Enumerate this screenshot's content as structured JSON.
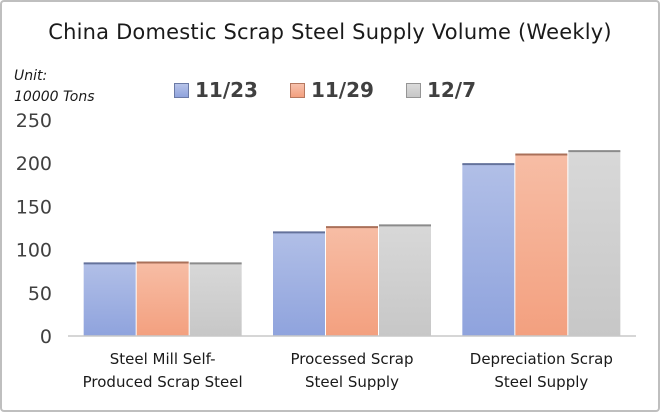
{
  "chart_data": {
    "type": "bar",
    "title": "China Domestic Scrap Steel Supply Volume (Weekly)",
    "unit_label": "Unit:\n10000 Tons",
    "categories": [
      [
        "Steel Mill Self-",
        "Produced Scrap Steel"
      ],
      [
        "Processed Scrap",
        "Steel Supply"
      ],
      [
        "Depreciation Scrap",
        "Steel Supply"
      ]
    ],
    "series": [
      {
        "name": "11/23",
        "color": "#8fa3dd",
        "values": [
          84,
          120,
          199
        ]
      },
      {
        "name": "11/29",
        "color": "#f3a07f",
        "values": [
          85,
          126,
          210
        ]
      },
      {
        "name": "12/7",
        "color": "#c7c7c7",
        "values": [
          84,
          128,
          214
        ]
      }
    ],
    "y_ticks": [
      0,
      50,
      100,
      150,
      200,
      250
    ],
    "ylim": [
      0,
      250
    ],
    "grid": false,
    "legend_position": "top"
  }
}
